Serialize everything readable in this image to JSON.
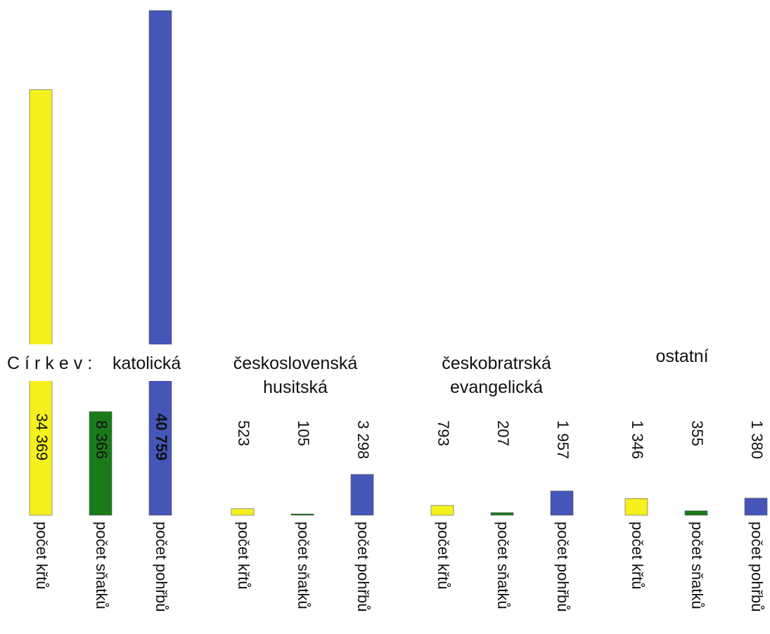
{
  "chart_data": {
    "type": "bar",
    "x_label": "Církev:",
    "categories": [
      "katolická",
      "československá husitská",
      "českobratrská evangelická",
      "ostatní"
    ],
    "series": [
      {
        "name": "počet křtů",
        "color": "#f5f01e",
        "values": [
          34369,
          523,
          793,
          1346
        ],
        "value_labels": [
          "34 369",
          "523",
          "793",
          "1 346"
        ]
      },
      {
        "name": "počet sňatků",
        "color": "#1a7a1a",
        "values": [
          8366,
          105,
          207,
          355
        ],
        "value_labels": [
          "8 366",
          "105",
          "207",
          "355"
        ]
      },
      {
        "name": "počet pohřbů",
        "color": "#4655b8",
        "values": [
          40759,
          3298,
          1957,
          1380
        ],
        "value_labels": [
          "40 759",
          "3 298",
          "1 957",
          "1 380"
        ]
      }
    ]
  }
}
